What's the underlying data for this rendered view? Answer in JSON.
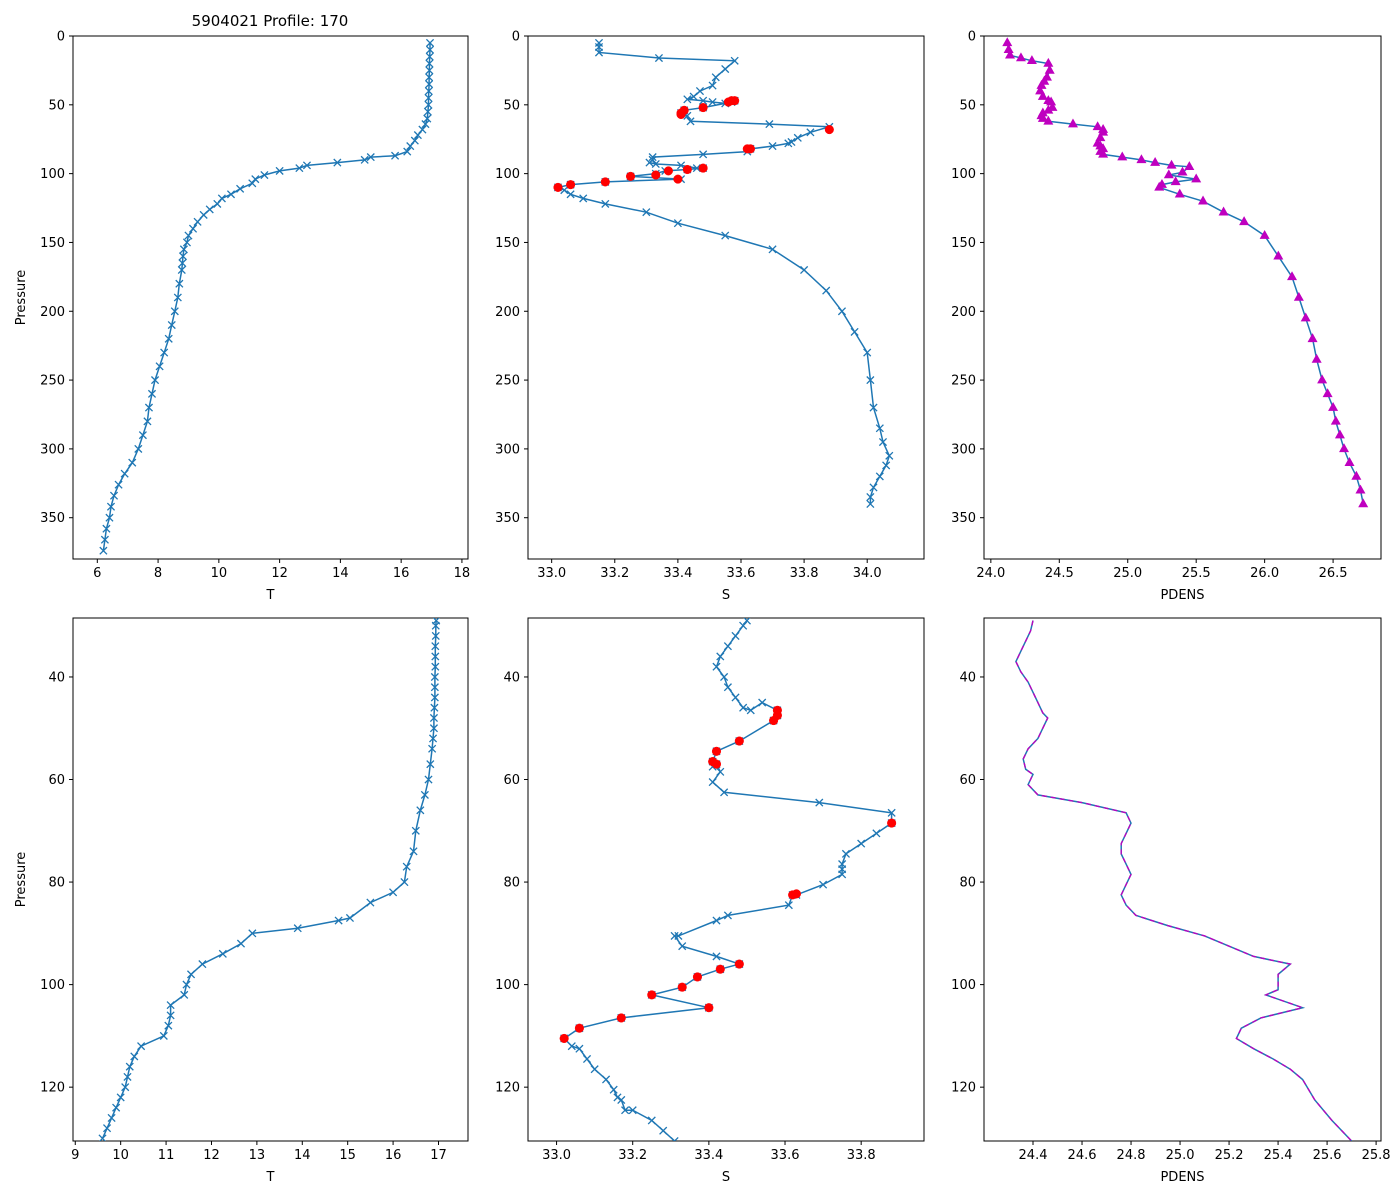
{
  "figure_title": "5904021 Profile: 170",
  "colors": {
    "line": "#1f77b4",
    "flagged": "#ff0000",
    "density": "#bf00bf"
  },
  "chart_data": [
    {
      "type": "line",
      "marker": "x",
      "title": "5904021 Profile: 170",
      "xlabel": "T",
      "ylabel": "Pressure",
      "xlim": [
        5.2,
        18.2
      ],
      "ylim": [
        380,
        0
      ],
      "xticks": [
        6,
        8,
        10,
        12,
        14,
        16,
        18
      ],
      "yticks": [
        0,
        50,
        100,
        150,
        200,
        250,
        300,
        350
      ],
      "x": [
        16.95,
        16.95,
        16.94,
        16.93,
        16.93,
        16.92,
        16.92,
        16.91,
        16.9,
        16.9,
        16.88,
        16.86,
        16.8,
        16.7,
        16.55,
        16.45,
        16.3,
        16.2,
        15.8,
        15.0,
        14.8,
        13.9,
        12.9,
        12.65,
        12.0,
        11.5,
        11.2,
        11.1,
        10.7,
        10.4,
        10.1,
        9.95,
        9.7,
        9.5,
        9.3,
        9.15,
        9.0,
        8.95,
        8.85,
        8.82,
        8.8,
        8.78,
        8.7,
        8.65,
        8.55,
        8.45,
        8.35,
        8.2,
        8.05,
        7.9,
        7.8,
        7.7,
        7.65,
        7.5,
        7.35,
        7.15,
        6.9,
        6.7,
        6.55,
        6.45,
        6.4,
        6.3,
        6.25,
        6.2
      ],
      "y": [
        5,
        10,
        15,
        20,
        25,
        30,
        35,
        40,
        45,
        50,
        55,
        60,
        64,
        68,
        72,
        76,
        80,
        84,
        87,
        88,
        90,
        92,
        94,
        96,
        98,
        101,
        104,
        107,
        111,
        115,
        118,
        122,
        126,
        130,
        135,
        140,
        145,
        150,
        155,
        160,
        165,
        170,
        180,
        190,
        200,
        210,
        220,
        230,
        240,
        250,
        260,
        270,
        280,
        290,
        300,
        310,
        318,
        326,
        334,
        342,
        350,
        358,
        366,
        374
      ]
    },
    {
      "type": "line",
      "marker": "x",
      "xlabel": "S",
      "ylabel": "",
      "xlim": [
        32.925,
        34.18
      ],
      "ylim": [
        380,
        0
      ],
      "xticks": [
        33.0,
        33.2,
        33.4,
        33.6,
        33.8,
        34.0
      ],
      "yticks": [
        0,
        50,
        100,
        150,
        200,
        250,
        300,
        350
      ],
      "x": [
        33.15,
        33.15,
        33.15,
        33.34,
        33.58,
        33.55,
        33.52,
        33.51,
        33.47,
        33.45,
        33.43,
        33.48,
        33.51,
        33.55,
        33.58,
        33.57,
        33.48,
        33.42,
        33.41,
        33.42,
        33.43,
        33.44,
        33.69,
        33.88,
        33.82,
        33.78,
        33.76,
        33.75,
        33.7,
        33.63,
        33.62,
        33.48,
        33.32,
        33.32,
        33.31,
        33.33,
        33.41,
        33.46,
        33.48,
        33.43,
        33.36,
        33.33,
        33.25,
        33.41,
        33.17,
        33.06,
        33.02,
        33.04,
        33.06,
        33.1,
        33.17,
        33.3,
        33.4,
        33.55,
        33.7,
        33.8,
        33.87,
        33.92,
        33.96,
        34.0,
        34.01,
        34.02,
        34.04,
        34.05,
        34.07,
        34.06,
        34.04,
        34.02,
        34.01,
        34.01
      ],
      "y": [
        5,
        8,
        12,
        16,
        18,
        24,
        30,
        36,
        40,
        44,
        46,
        47,
        48,
        49,
        47,
        48,
        52,
        54,
        56,
        57,
        58,
        62,
        64,
        66,
        70,
        74,
        77,
        78,
        80,
        82,
        84,
        86,
        88,
        90,
        92,
        93,
        94,
        96,
        96,
        97,
        98,
        100,
        102,
        104,
        106,
        108,
        110,
        112,
        115,
        118,
        122,
        128,
        136,
        145,
        155,
        170,
        185,
        200,
        215,
        230,
        250,
        270,
        285,
        295,
        305,
        312,
        320,
        328,
        335,
        340
      ],
      "flagged": {
        "x": [
          33.56,
          33.58,
          33.57,
          33.48,
          33.42,
          33.41,
          33.41,
          33.88,
          33.62,
          33.63,
          33.48,
          33.43,
          33.37,
          33.33,
          33.25,
          33.4,
          33.17,
          33.06,
          33.02
        ],
        "y": [
          48,
          47,
          47,
          52,
          54,
          56,
          57,
          68,
          82,
          82,
          96,
          97,
          98,
          101,
          102,
          104,
          106,
          108,
          110
        ]
      }
    },
    {
      "type": "line",
      "marker": "^",
      "xlabel": "PDENS",
      "ylabel": "",
      "xlim": [
        23.95,
        26.85
      ],
      "ylim": [
        380,
        0
      ],
      "xticks": [
        24.0,
        24.5,
        25.0,
        25.5,
        26.0,
        26.5
      ],
      "yticks": [
        0,
        50,
        100,
        150,
        200,
        250,
        300,
        350
      ],
      "x": [
        24.12,
        24.13,
        24.14,
        24.22,
        24.3,
        24.42,
        24.43,
        24.41,
        24.39,
        24.37,
        24.36,
        24.38,
        24.42,
        24.44,
        24.45,
        24.42,
        24.38,
        24.37,
        24.38,
        24.42,
        24.6,
        24.78,
        24.82,
        24.82,
        24.8,
        24.78,
        24.8,
        24.82,
        24.8,
        24.82,
        24.96,
        25.1,
        25.2,
        25.32,
        25.45,
        25.4,
        25.3,
        25.5,
        25.35,
        25.25,
        25.23,
        25.38,
        25.55,
        25.7,
        25.85,
        26.0,
        26.1,
        26.2,
        26.25,
        26.3,
        26.35,
        26.38,
        26.42,
        26.46,
        26.5,
        26.52,
        26.55,
        26.58,
        26.62,
        26.67,
        26.7,
        26.72
      ],
      "y": [
        5,
        10,
        14,
        16,
        18,
        20,
        25,
        30,
        33,
        36,
        40,
        44,
        47,
        48,
        52,
        54,
        56,
        58,
        60,
        62,
        64,
        66,
        68,
        70,
        74,
        78,
        80,
        82,
        84,
        86,
        88,
        90,
        92,
        94,
        95,
        99,
        101,
        104,
        106,
        108,
        110,
        115,
        120,
        128,
        135,
        145,
        160,
        175,
        190,
        205,
        220,
        235,
        250,
        260,
        270,
        280,
        290,
        300,
        310,
        320,
        330,
        340
      ]
    },
    {
      "type": "line",
      "marker": "x",
      "xlabel": "T",
      "ylabel": "Pressure",
      "xlim": [
        8.95,
        17.65
      ],
      "ylim": [
        130.5,
        28.5
      ],
      "xticks": [
        9,
        10,
        11,
        12,
        13,
        14,
        15,
        16,
        17
      ],
      "yticks": [
        40,
        60,
        80,
        100,
        120
      ],
      "x": [
        16.95,
        16.94,
        16.94,
        16.93,
        16.93,
        16.93,
        16.92,
        16.92,
        16.92,
        16.91,
        16.9,
        16.9,
        16.88,
        16.86,
        16.82,
        16.78,
        16.7,
        16.6,
        16.5,
        16.45,
        16.3,
        16.25,
        16.0,
        15.5,
        15.05,
        14.8,
        13.9,
        12.9,
        12.65,
        12.25,
        11.8,
        11.55,
        11.45,
        11.4,
        11.1,
        11.1,
        11.05,
        10.95,
        10.45,
        10.3,
        10.2,
        10.15,
        10.1,
        10.0,
        9.9,
        9.8,
        9.7,
        9.6
      ],
      "y": [
        29,
        30,
        32,
        34,
        36,
        38,
        40,
        42,
        44,
        46,
        48,
        50,
        52,
        54,
        57,
        60,
        63,
        66,
        70,
        74,
        77,
        80,
        82,
        84,
        87,
        87.5,
        89,
        90,
        92,
        94,
        96,
        98,
        100,
        102,
        104,
        106,
        108,
        110,
        112,
        114,
        116,
        118,
        120,
        122,
        124,
        126,
        128,
        130
      ]
    },
    {
      "type": "line",
      "marker": "x",
      "xlabel": "S",
      "ylabel": "",
      "xlim": [
        32.925,
        33.965
      ],
      "ylim": [
        130.5,
        28.5
      ],
      "xticks": [
        33.0,
        33.2,
        33.4,
        33.6,
        33.8
      ],
      "yticks": [
        40,
        60,
        80,
        100,
        120
      ],
      "x": [
        33.5,
        33.49,
        33.47,
        33.45,
        33.43,
        33.42,
        33.44,
        33.45,
        33.47,
        33.49,
        33.51,
        33.54,
        33.58,
        33.58,
        33.57,
        33.48,
        33.42,
        33.41,
        33.41,
        33.42,
        33.43,
        33.41,
        33.44,
        33.69,
        33.88,
        33.88,
        33.84,
        33.8,
        33.76,
        33.75,
        33.75,
        33.75,
        33.7,
        33.63,
        33.62,
        33.61,
        33.45,
        33.42,
        33.32,
        33.31,
        33.33,
        33.42,
        33.48,
        33.43,
        33.37,
        33.33,
        33.25,
        33.4,
        33.17,
        33.06,
        33.02,
        33.04,
        33.06,
        33.08,
        33.1,
        33.13,
        33.15,
        33.16,
        33.17,
        33.18,
        33.2,
        33.25,
        33.28,
        33.31
      ],
      "y": [
        29,
        30,
        32,
        34,
        36,
        38,
        40,
        42,
        44,
        46,
        46.5,
        45,
        46.5,
        47.5,
        48.5,
        52.5,
        54.5,
        56.5,
        57.5,
        57.0,
        58.5,
        60.5,
        62.5,
        64.5,
        66.5,
        68.5,
        70.5,
        72.5,
        74.5,
        76.5,
        77.5,
        78.5,
        80.5,
        82.5,
        82.5,
        84.5,
        86.5,
        87.5,
        90.5,
        90.5,
        92.5,
        94.5,
        96.0,
        97.0,
        98.5,
        100.5,
        102.0,
        104.5,
        106.5,
        108.5,
        110.5,
        112.0,
        112.5,
        114.5,
        116.5,
        118.5,
        120.5,
        122.0,
        122.5,
        124.5,
        124.5,
        126.5,
        128.5,
        130.5
      ],
      "flagged": {
        "x": [
          33.58,
          33.58,
          33.57,
          33.48,
          33.42,
          33.41,
          33.42,
          33.88,
          33.62,
          33.63,
          33.48,
          33.43,
          33.37,
          33.33,
          33.25,
          33.4,
          33.17,
          33.06,
          33.02
        ],
        "y": [
          46.5,
          47.5,
          48.5,
          52.5,
          54.5,
          56.5,
          57.0,
          68.5,
          82.5,
          82.3,
          96.0,
          97.0,
          98.5,
          100.5,
          102.0,
          104.5,
          106.5,
          108.5,
          110.5
        ]
      }
    },
    {
      "type": "line",
      "marker": "none",
      "xlabel": "PDENS",
      "ylabel": "",
      "xlim": [
        24.2,
        25.82
      ],
      "ylim": [
        130.5,
        28.5
      ],
      "xticks": [
        24.4,
        24.6,
        24.8,
        25.0,
        25.2,
        25.4,
        25.6,
        25.8
      ],
      "yticks": [
        40,
        60,
        80,
        100,
        120
      ],
      "x": [
        24.4,
        24.39,
        24.37,
        24.35,
        24.33,
        24.35,
        24.38,
        24.4,
        24.42,
        24.44,
        24.46,
        24.44,
        24.42,
        24.38,
        24.36,
        24.37,
        24.4,
        24.38,
        24.42,
        24.6,
        24.78,
        24.8,
        24.78,
        24.76,
        24.76,
        24.78,
        24.8,
        24.78,
        24.76,
        24.78,
        24.82,
        24.95,
        25.1,
        25.2,
        25.3,
        25.45,
        25.4,
        25.4,
        25.35,
        25.5,
        25.33,
        25.25,
        25.23,
        25.3,
        25.38,
        25.45,
        25.5,
        25.55,
        25.62,
        25.7
      ],
      "y": [
        29,
        31,
        33,
        35,
        37,
        39,
        41,
        43,
        45,
        47,
        48,
        50,
        52,
        54,
        56,
        58,
        59,
        61,
        63,
        64.5,
        66.5,
        68.5,
        70.5,
        72.5,
        74.5,
        76.5,
        78.5,
        80.5,
        82.5,
        84.5,
        86.5,
        88.5,
        90.5,
        92.5,
        94.5,
        96,
        98,
        101,
        102,
        104.5,
        106.5,
        108.5,
        110.5,
        112.5,
        114.5,
        116.5,
        118.5,
        122.5,
        126.5,
        130.5
      ],
      "overlay": {
        "color": "magenta dashed",
        "note": "density curve with dashed magenta overlay"
      }
    }
  ]
}
